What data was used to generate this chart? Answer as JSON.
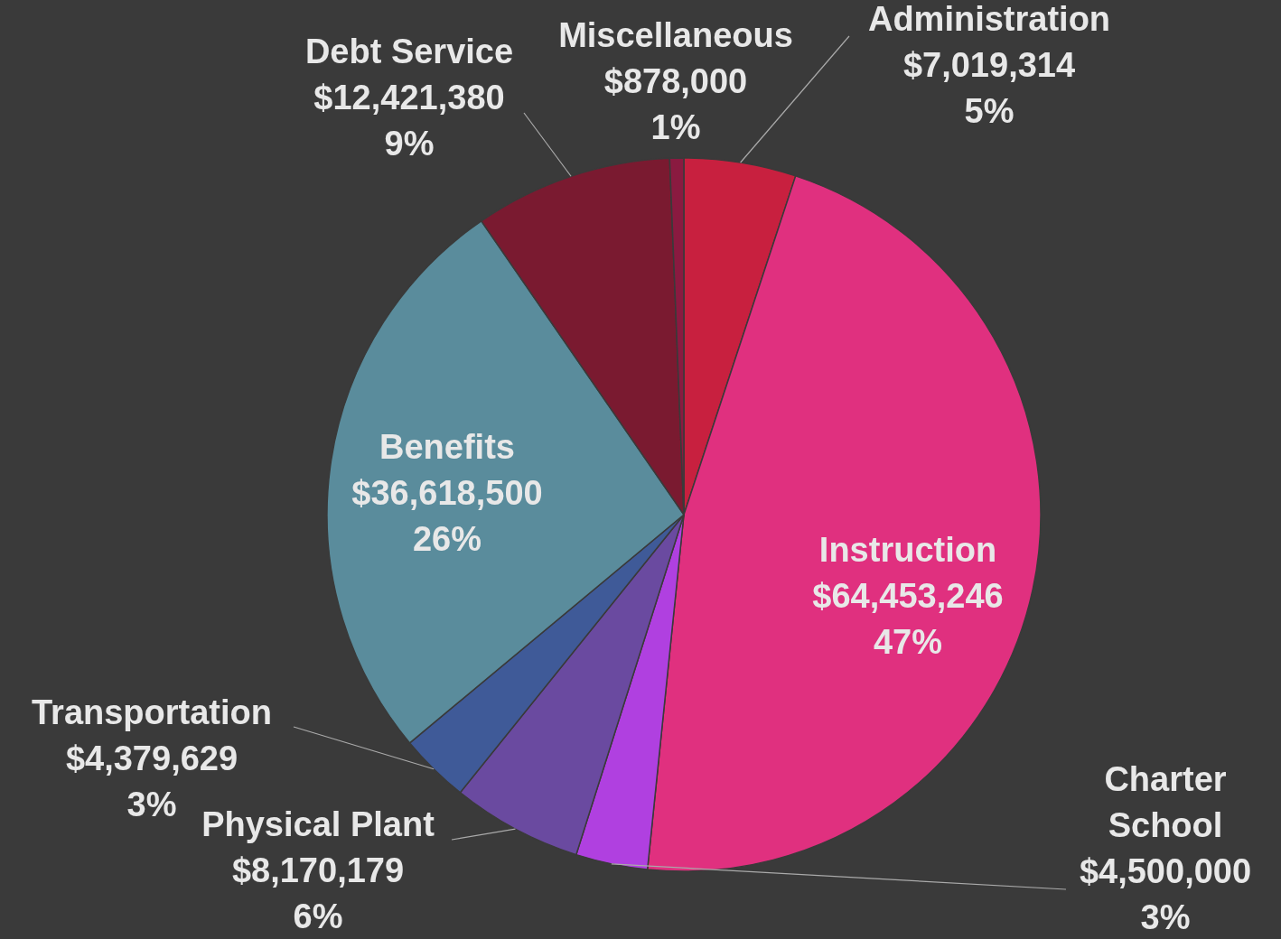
{
  "chart_data": {
    "type": "pie",
    "categories": [
      "Administration",
      "Instruction",
      "Charter School",
      "Physical Plant",
      "Transportation",
      "Benefits",
      "Debt Service",
      "Miscellaneous"
    ],
    "values": [
      7019314,
      64453246,
      4500000,
      8170179,
      4379629,
      36618500,
      12421380,
      878000
    ],
    "value_labels": [
      "$7,019,314\n5%",
      "$64,453,246\n47%",
      "$4,500,000\n3%",
      "$8,170,179\n6%",
      "$4,379,629\n3%",
      "$36,618,500\n26%",
      "$12,421,380\n9%",
      "$878,000\n1%"
    ],
    "colors": [
      "#c8203f",
      "#e0307f",
      "#b040e0",
      "#6a4aa0",
      "#3f5a98",
      "#5a8c9c",
      "#7a1a30",
      "#8a1a40"
    ]
  }
}
